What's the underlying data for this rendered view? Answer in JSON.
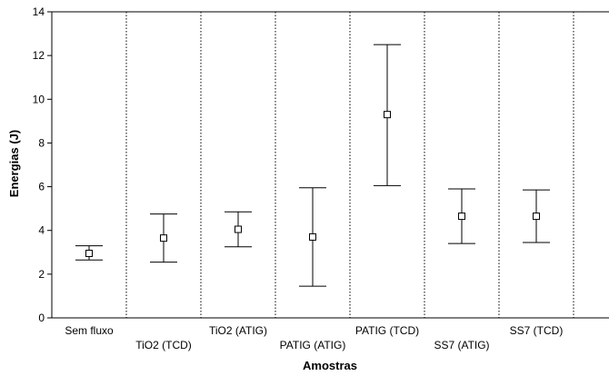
{
  "chart_data": {
    "type": "errorbar",
    "xlabel": "Amostras",
    "ylabel": "Energias (J)",
    "ylim": [
      0,
      14
    ],
    "yticks": [
      "0",
      "2",
      "4",
      "6",
      "8",
      "10",
      "12",
      "14"
    ],
    "grid": "vertical dotted separators between categories",
    "categories": [
      "Sem fluxo",
      "TiO2 (TCD)",
      "TiO2 (ATIG)",
      "PATIG (ATIG)",
      "PATIG (TCD)",
      "SS7 (ATIG)",
      "SS7 (TCD)"
    ],
    "series": [
      {
        "mean": [
          2.95,
          3.65,
          4.05,
          3.7,
          9.3,
          4.65,
          4.65
        ],
        "lower": [
          2.65,
          2.55,
          3.25,
          1.45,
          6.05,
          3.4,
          3.45
        ],
        "upper": [
          3.3,
          4.75,
          4.85,
          5.95,
          12.5,
          5.9,
          5.85
        ]
      }
    ]
  }
}
